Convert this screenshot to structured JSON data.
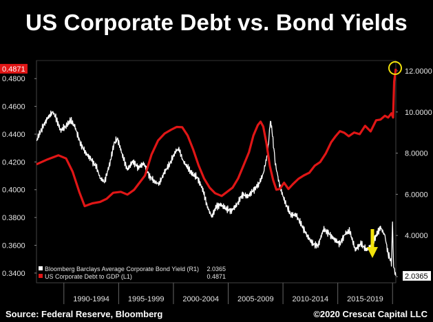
{
  "title": "US Corporate Debt vs. Bond Yields",
  "footer": {
    "source": "Source: Federal Reserve, Bloomberg",
    "credit": "©2020 Crescat Capital LLC"
  },
  "colors": {
    "background": "#000000",
    "debt_series": "#e01616",
    "yield_series": "#ffffff",
    "highlight_circle": "#f2e20a",
    "arrow": "#f2e20a",
    "last_value_box_left": "#e01616",
    "last_value_box_right": "#ffffff"
  },
  "chart_data": {
    "type": "line",
    "x_categories": [
      "1990-1994",
      "1995-1999",
      "2000-2004",
      "2005-2009",
      "2010-2014",
      "2015-2019"
    ],
    "x_range": [
      1987.5,
      2020.3
    ],
    "left_axis": {
      "ticks": [
        "0.3400",
        "0.3600",
        "0.3800",
        "0.4000",
        "0.4200",
        "0.4400",
        "0.4600",
        "0.4800"
      ],
      "range": [
        0.333,
        0.493
      ],
      "last_value_label": "0.4871"
    },
    "right_axis": {
      "ticks": [
        "2.0000",
        "4.0000",
        "6.0000",
        "8.0000",
        "10.0000",
        "12.0000"
      ],
      "range": [
        1.7,
        12.5
      ],
      "last_value_label": "2.0365"
    },
    "series": [
      {
        "name": "Bloomberg Barclays Average Corporate Bond Yield (R1)",
        "axis": "right",
        "legend_value": "2.0365",
        "points": [
          [
            1987.5,
            8.6
          ],
          [
            1988.0,
            9.2
          ],
          [
            1988.5,
            9.7
          ],
          [
            1989.0,
            10.0
          ],
          [
            1989.3,
            9.7
          ],
          [
            1989.7,
            9.1
          ],
          [
            1990.2,
            9.3
          ],
          [
            1990.6,
            9.6
          ],
          [
            1991.0,
            9.3
          ],
          [
            1991.5,
            8.5
          ],
          [
            1992.0,
            8.0
          ],
          [
            1992.5,
            7.7
          ],
          [
            1993.0,
            7.3
          ],
          [
            1993.3,
            6.8
          ],
          [
            1993.7,
            6.6
          ],
          [
            1994.2,
            7.5
          ],
          [
            1994.6,
            8.5
          ],
          [
            1994.9,
            8.7
          ],
          [
            1995.4,
            7.8
          ],
          [
            1995.8,
            7.2
          ],
          [
            1996.3,
            7.6
          ],
          [
            1996.8,
            7.3
          ],
          [
            1997.3,
            7.5
          ],
          [
            1997.8,
            6.9
          ],
          [
            1998.3,
            6.6
          ],
          [
            1998.7,
            6.5
          ],
          [
            1999.2,
            7.1
          ],
          [
            1999.7,
            7.5
          ],
          [
            2000.2,
            8.1
          ],
          [
            2000.5,
            8.2
          ],
          [
            2000.9,
            7.6
          ],
          [
            2001.3,
            7.3
          ],
          [
            2001.7,
            7.0
          ],
          [
            2002.2,
            6.8
          ],
          [
            2002.7,
            6.2
          ],
          [
            2003.1,
            5.4
          ],
          [
            2003.5,
            4.9
          ],
          [
            2003.9,
            5.4
          ],
          [
            2004.3,
            5.5
          ],
          [
            2004.8,
            5.3
          ],
          [
            2005.3,
            5.2
          ],
          [
            2005.8,
            5.5
          ],
          [
            2006.3,
            6.0
          ],
          [
            2006.8,
            5.9
          ],
          [
            2007.3,
            6.2
          ],
          [
            2007.8,
            6.5
          ],
          [
            2008.2,
            7.0
          ],
          [
            2008.6,
            8.0
          ],
          [
            2008.85,
            9.6
          ],
          [
            2009.0,
            9.1
          ],
          [
            2009.3,
            7.5
          ],
          [
            2009.7,
            6.4
          ],
          [
            2010.2,
            5.6
          ],
          [
            2010.7,
            5.0
          ],
          [
            2011.2,
            5.0
          ],
          [
            2011.7,
            4.5
          ],
          [
            2012.2,
            4.0
          ],
          [
            2012.7,
            3.6
          ],
          [
            2013.2,
            3.5
          ],
          [
            2013.7,
            4.3
          ],
          [
            2014.2,
            4.1
          ],
          [
            2014.7,
            3.8
          ],
          [
            2015.2,
            3.6
          ],
          [
            2015.7,
            4.1
          ],
          [
            2016.1,
            4.2
          ],
          [
            2016.6,
            3.3
          ],
          [
            2017.1,
            3.6
          ],
          [
            2017.6,
            3.3
          ],
          [
            2018.1,
            3.5
          ],
          [
            2018.5,
            4.0
          ],
          [
            2018.9,
            4.4
          ],
          [
            2019.3,
            4.0
          ],
          [
            2019.6,
            3.1
          ],
          [
            2019.9,
            2.7
          ],
          [
            2020.0,
            4.5
          ],
          [
            2020.1,
            2.5
          ],
          [
            2020.3,
            2.0365
          ]
        ]
      },
      {
        "name": "US Corporate Debt to GDP (L1)",
        "axis": "left",
        "legend_value": "0.4871",
        "points": [
          [
            1987.5,
            0.4183
          ],
          [
            1988.5,
            0.4218
          ],
          [
            1989.5,
            0.4248
          ],
          [
            1990.2,
            0.4225
          ],
          [
            1990.8,
            0.413
          ],
          [
            1991.4,
            0.3985
          ],
          [
            1991.9,
            0.3882
          ],
          [
            1992.6,
            0.3902
          ],
          [
            1993.3,
            0.3912
          ],
          [
            1993.9,
            0.3935
          ],
          [
            1994.5,
            0.3978
          ],
          [
            1995.2,
            0.3985
          ],
          [
            1995.8,
            0.3965
          ],
          [
            1996.4,
            0.3998
          ],
          [
            1996.9,
            0.405
          ],
          [
            1997.4,
            0.4102
          ],
          [
            1998.0,
            0.4253
          ],
          [
            1998.6,
            0.4355
          ],
          [
            1999.2,
            0.4405
          ],
          [
            1999.8,
            0.4432
          ],
          [
            2000.3,
            0.4452
          ],
          [
            2000.8,
            0.445
          ],
          [
            2001.3,
            0.439
          ],
          [
            2001.8,
            0.429
          ],
          [
            2002.3,
            0.4175
          ],
          [
            2002.8,
            0.408
          ],
          [
            2003.3,
            0.4015
          ],
          [
            2003.8,
            0.3975
          ],
          [
            2004.4,
            0.3955
          ],
          [
            2004.9,
            0.3985
          ],
          [
            2005.4,
            0.4015
          ],
          [
            2005.9,
            0.408
          ],
          [
            2006.4,
            0.4175
          ],
          [
            2006.9,
            0.427
          ],
          [
            2007.3,
            0.439
          ],
          [
            2007.7,
            0.4465
          ],
          [
            2007.95,
            0.449
          ],
          [
            2008.2,
            0.4455
          ],
          [
            2008.5,
            0.433
          ],
          [
            2008.8,
            0.417
          ],
          [
            2009.1,
            0.407
          ],
          [
            2009.4,
            0.4
          ],
          [
            2009.7,
            0.4005
          ],
          [
            2010.1,
            0.405
          ],
          [
            2010.5,
            0.4005
          ],
          [
            2010.9,
            0.404
          ],
          [
            2011.4,
            0.4078
          ],
          [
            2011.9,
            0.4103
          ],
          [
            2012.4,
            0.4122
          ],
          [
            2012.9,
            0.4173
          ],
          [
            2013.4,
            0.42
          ],
          [
            2013.9,
            0.426
          ],
          [
            2014.4,
            0.4342
          ],
          [
            2014.8,
            0.4385
          ],
          [
            2015.2,
            0.4422
          ],
          [
            2015.6,
            0.441
          ],
          [
            2016.0,
            0.4385
          ],
          [
            2016.5,
            0.4412
          ],
          [
            2017.0,
            0.44
          ],
          [
            2017.5,
            0.446
          ],
          [
            2018.0,
            0.442
          ],
          [
            2018.5,
            0.45
          ],
          [
            2018.9,
            0.4505
          ],
          [
            2019.3,
            0.4532
          ],
          [
            2019.6,
            0.452
          ],
          [
            2019.9,
            0.455
          ],
          [
            2020.05,
            0.452
          ],
          [
            2020.15,
            0.478
          ],
          [
            2020.3,
            0.4871
          ]
        ]
      }
    ],
    "legend_position": "bottom-left",
    "grid": false
  }
}
